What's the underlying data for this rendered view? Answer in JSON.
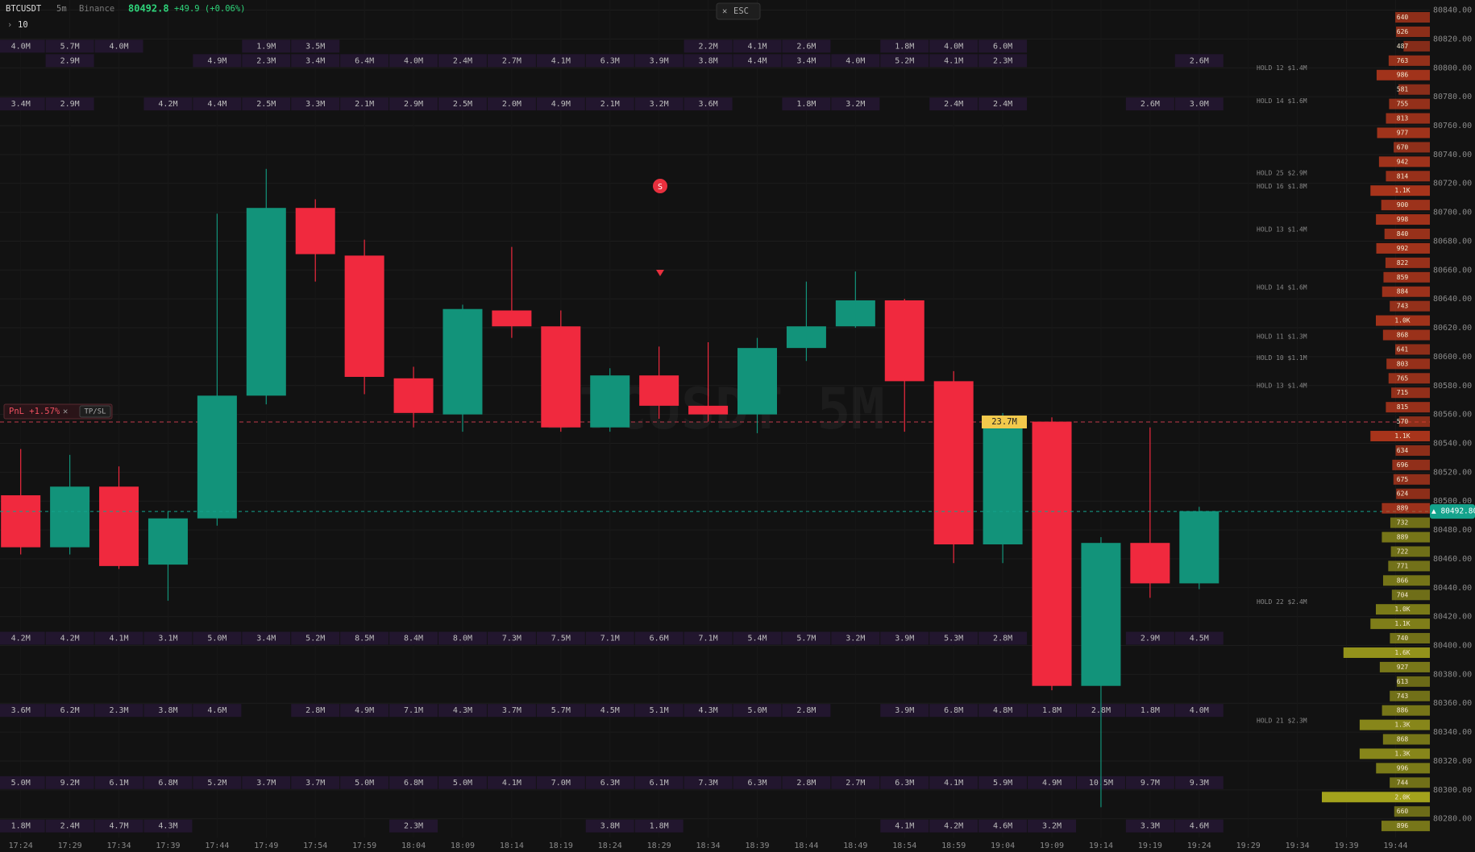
{
  "header": {
    "symbol": "BTCUSDT",
    "interval": "5m",
    "exchange": "Binance",
    "price": 80492.8,
    "change": "+49.9 (+0.06%)",
    "depth": "10"
  },
  "esc": "ESC",
  "pnl": {
    "label": "PnL +1.57%",
    "tpsl": "TP/SL"
  },
  "watermark": "BTCUSDT 5M",
  "price_badge": "▲ 80492.80",
  "volume_tag": "23.7M",
  "signal": "S",
  "chart_data": {
    "type": "candlestick",
    "categories": [
      "17:24",
      "17:29",
      "17:34",
      "17:39",
      "17:44",
      "17:49",
      "17:54",
      "17:59",
      "18:04",
      "18:09",
      "18:14",
      "18:19",
      "18:24",
      "18:29",
      "18:34",
      "18:39",
      "18:44",
      "18:49",
      "18:54",
      "18:59",
      "19:04",
      "19:09",
      "19:14",
      "19:19",
      "19:24",
      "19:29",
      "19:34",
      "19:39",
      "19:44"
    ],
    "open": [
      80504,
      80468,
      80510,
      80456,
      80488,
      80573,
      80703,
      80670,
      80585,
      80560,
      80632,
      80621,
      80551,
      80587,
      80566,
      80560,
      80606,
      80621,
      80639,
      80583,
      80470,
      80555,
      80372,
      80471,
      80443,
      null,
      null,
      null,
      null
    ],
    "high": [
      80536,
      80532,
      80524,
      80493,
      80699,
      80730,
      80709,
      80681,
      80593,
      80636,
      80676,
      80632,
      80592,
      80607,
      80610,
      80613,
      80652,
      80659,
      80640,
      80590,
      80561,
      80558,
      80475,
      80551,
      80496,
      null,
      null,
      null,
      null
    ],
    "low": [
      80463,
      80463,
      80453,
      80431,
      80483,
      80567,
      80652,
      80574,
      80551,
      80548,
      80613,
      80548,
      80548,
      80557,
      80555,
      80547,
      80597,
      80620,
      80548,
      80457,
      80457,
      80369,
      80288,
      80433,
      80439,
      null,
      null,
      null,
      null
    ],
    "close": [
      80468,
      80510,
      80455,
      80488,
      80573,
      80703,
      80671,
      80586,
      80561,
      80633,
      80621,
      80551,
      80587,
      80566,
      80560,
      80606,
      80621,
      80639,
      80583,
      80470,
      80555,
      80372,
      80471,
      80443,
      80493,
      null,
      null,
      null,
      null
    ],
    "up_color": "#12937a",
    "down_color": "#f0293e",
    "ylim": [
      80267,
      80847
    ],
    "yticks": [
      {
        "value": 80840,
        "label": "80840.00"
      },
      {
        "value": 80820,
        "label": "80820.00"
      },
      {
        "value": 80800,
        "label": "80800.00"
      },
      {
        "value": 80780,
        "label": "80780.00"
      },
      {
        "value": 80760,
        "label": "80760.00"
      },
      {
        "value": 80740,
        "label": "80740.00"
      },
      {
        "value": 80720,
        "label": "80720.00"
      },
      {
        "value": 80700,
        "label": "80700.00"
      },
      {
        "value": 80680,
        "label": "80680.00"
      },
      {
        "value": 80660,
        "label": "80660.00"
      },
      {
        "value": 80640,
        "label": "80640.00"
      },
      {
        "value": 80620,
        "label": "80620.00"
      },
      {
        "value": 80600,
        "label": "80600.00"
      },
      {
        "value": 80580,
        "label": "80580.00"
      },
      {
        "value": 80560,
        "label": "80560.00"
      },
      {
        "value": 80540,
        "label": "80540.00"
      },
      {
        "value": 80520,
        "label": "80520.00"
      },
      {
        "value": 80500,
        "label": "80500.00"
      },
      {
        "value": 80480,
        "label": "80480.00"
      },
      {
        "value": 80460,
        "label": "80460.00"
      },
      {
        "value": 80440,
        "label": "80440.00"
      },
      {
        "value": 80420,
        "label": "80420.00"
      },
      {
        "value": 80400,
        "label": "80400.00"
      },
      {
        "value": 80380,
        "label": "80380.00"
      },
      {
        "value": 80360,
        "label": "80360.00"
      },
      {
        "value": 80340,
        "label": "80340.00"
      },
      {
        "value": 80320,
        "label": "80320.00"
      },
      {
        "value": 80300,
        "label": "80300.00"
      },
      {
        "value": 80280,
        "label": "80280.00"
      }
    ],
    "grid": true
  },
  "footprint": {
    "rows": [
      {
        "price": 80815,
        "cells": [
          "4.0M",
          "5.7M",
          "4.0M",
          null,
          null,
          "1.9M",
          "3.5M",
          null,
          null,
          null,
          null,
          null,
          null,
          null,
          "2.2M",
          "4.1M",
          "2.6M",
          null,
          "1.8M",
          "4.0M",
          "6.0M",
          null,
          null,
          null,
          null
        ]
      },
      {
        "price": 80805,
        "cells": [
          null,
          "2.9M",
          null,
          null,
          "4.9M",
          "2.3M",
          "3.4M",
          "6.4M",
          "4.0M",
          "2.4M",
          "2.7M",
          "4.1M",
          "6.3M",
          "3.9M",
          "3.8M",
          "4.4M",
          "3.4M",
          "4.0M",
          "5.2M",
          "4.1M",
          "2.3M",
          null,
          null,
          null,
          "2.6M"
        ]
      },
      {
        "price": 80775,
        "cells": [
          "3.4M",
          "2.9M",
          null,
          "4.2M",
          "4.4M",
          "2.5M",
          "3.3M",
          "2.1M",
          "2.9M",
          "2.5M",
          "2.0M",
          "4.9M",
          "2.1M",
          "3.2M",
          "3.6M",
          null,
          "1.8M",
          "3.2M",
          null,
          "2.4M",
          "2.4M",
          null,
          null,
          "2.6M",
          "3.0M"
        ]
      },
      {
        "price": 80405,
        "cells": [
          "4.2M",
          "4.2M",
          "4.1M",
          "3.1M",
          "5.0M",
          "3.4M",
          "5.2M",
          "8.5M",
          "8.4M",
          "8.0M",
          "7.3M",
          "7.5M",
          "7.1M",
          "6.6M",
          "7.1M",
          "5.4M",
          "5.7M",
          "3.2M",
          "3.9M",
          "5.3M",
          "2.8M",
          null,
          null,
          "2.9M",
          "4.5M"
        ]
      },
      {
        "price": 80355,
        "cells": [
          "3.6M",
          "6.2M",
          "2.3M",
          "3.8M",
          "4.6M",
          null,
          "2.8M",
          "4.9M",
          "7.1M",
          "4.3M",
          "3.7M",
          "5.7M",
          "4.5M",
          "5.1M",
          "4.3M",
          "5.0M",
          "2.8M",
          null,
          "3.9M",
          "6.8M",
          "4.8M",
          "1.8M",
          "2.8M",
          "1.8M",
          "4.0M"
        ]
      },
      {
        "price": 80305,
        "cells": [
          "5.0M",
          "9.2M",
          "6.1M",
          "6.8M",
          "5.2M",
          "3.7M",
          "3.7M",
          "5.0M",
          "6.8M",
          "5.0M",
          "4.1M",
          "7.0M",
          "6.3M",
          "6.1M",
          "7.3M",
          "6.3M",
          "2.8M",
          "2.7M",
          "6.3M",
          "4.1M",
          "5.9M",
          "4.9M",
          "10.5M",
          "9.7M",
          "9.3M"
        ]
      },
      {
        "price": 80275,
        "cells": [
          "1.8M",
          "2.4M",
          "4.7M",
          "4.3M",
          null,
          null,
          null,
          null,
          "2.3M",
          null,
          null,
          null,
          "3.8M",
          "1.8M",
          null,
          null,
          null,
          null,
          "4.1M",
          "4.2M",
          "4.6M",
          "3.2M",
          null,
          "3.3M",
          "4.6M"
        ]
      }
    ]
  },
  "book": {
    "asks": {
      "color": "#d8401f",
      "prices": [
        80835,
        80825,
        80815,
        80805,
        80795,
        80785,
        80775,
        80765,
        80755,
        80745,
        80735,
        80725,
        80715,
        80705,
        80695,
        80685,
        80675,
        80665,
        80655,
        80645,
        80635,
        80625,
        80615,
        80605,
        80595,
        80585,
        80575,
        80565,
        80555,
        80545,
        80535,
        80525,
        80515,
        80505,
        80495
      ],
      "sizes": [
        640,
        626,
        487,
        763,
        986,
        581,
        755,
        813,
        977,
        670,
        942,
        814,
        1100,
        900,
        998,
        840,
        992,
        822,
        859,
        884,
        743,
        1000,
        868,
        641,
        803,
        765,
        715,
        815,
        570,
        1100,
        634,
        696,
        675,
        624,
        889
      ],
      "labels": [
        "640",
        "626",
        "487",
        "763",
        "986",
        "581",
        "755",
        "813",
        "977",
        "670",
        "942",
        "814",
        "1.1K",
        "900",
        "998",
        "840",
        "992",
        "822",
        "859",
        "884",
        "743",
        "1.0K",
        "868",
        "641",
        "803",
        "765",
        "715",
        "815",
        "570",
        "1.1K",
        "634",
        "696",
        "675",
        "624",
        "889"
      ]
    },
    "bids": {
      "color": "#a3a21c",
      "prices": [
        80485,
        80475,
        80465,
        80455,
        80445,
        80435,
        80425,
        80415,
        80405,
        80395,
        80385,
        80375,
        80365,
        80355,
        80345,
        80335,
        80325,
        80315,
        80305,
        80295,
        80285,
        80275
      ],
      "sizes": [
        732,
        889,
        722,
        771,
        866,
        704,
        1000,
        1100,
        740,
        1600,
        927,
        613,
        743,
        886,
        1300,
        868,
        1300,
        996,
        744,
        2000,
        660,
        896
      ],
      "labels": [
        "732",
        "889",
        "722",
        "771",
        "866",
        "704",
        "1.0K",
        "1.1K",
        "740",
        "1.6K",
        "927",
        "613",
        "743",
        "886",
        "1.3K",
        "868",
        "1.3K",
        "996",
        "744",
        "2.0K",
        "660",
        "896"
      ]
    }
  },
  "holds": [
    {
      "text": "HOLD 12 $1.4M",
      "price": 80800
    },
    {
      "text": "HOLD 14 $1.6M",
      "price": 80777
    },
    {
      "text": "HOLD 25 $2.9M",
      "price": 80727
    },
    {
      "text": "HOLD 16 $1.8M",
      "price": 80718
    },
    {
      "text": "HOLD 13 $1.4M",
      "price": 80688
    },
    {
      "text": "HOLD 14 $1.6M",
      "price": 80648
    },
    {
      "text": "HOLD 11 $1.3M",
      "price": 80614
    },
    {
      "text": "HOLD 10 $1.1M",
      "price": 80599
    },
    {
      "text": "HOLD 13 $1.4M",
      "price": 80580
    },
    {
      "text": "HOLD 22 $2.4M",
      "price": 80430
    },
    {
      "text": "HOLD 21 $2.3M",
      "price": 80348
    }
  ]
}
